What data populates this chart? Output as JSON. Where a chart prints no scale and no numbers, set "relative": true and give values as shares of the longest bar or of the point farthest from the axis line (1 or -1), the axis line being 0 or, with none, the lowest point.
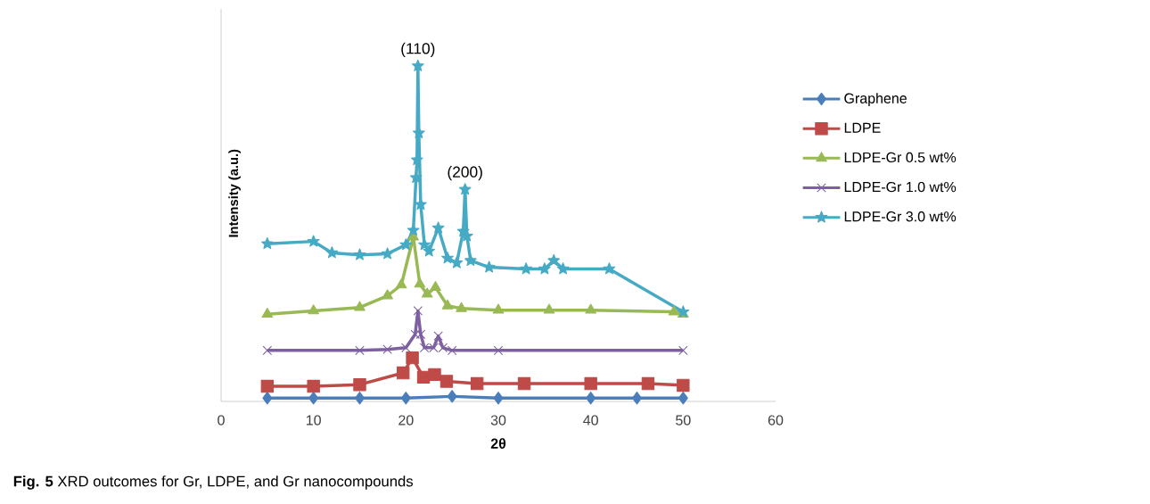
{
  "chart_data": {
    "type": "line",
    "relative": true,
    "xlabel": "2θ",
    "ylabel": "Intensity (a.u.)",
    "xlim": [
      0,
      60
    ],
    "xticks": [
      0,
      10,
      20,
      30,
      40,
      50,
      60
    ],
    "tick_labels": "x",
    "legend": "right",
    "grid": false,
    "line_style": "solid",
    "annotations": [
      {
        "text": "(110)",
        "x": 21.3,
        "y": 1.0
      },
      {
        "text": "(200)",
        "x": 26.4,
        "y": 0.632
      },
      "**Fig. 5** XRD outcomes for Gr, LDPE, and Gr nanocompounds"
    ],
    "series": [
      {
        "name": "Graphene",
        "color": "#4a7ebb",
        "marker": "diamond",
        "x": [
          5,
          10,
          15,
          20,
          25,
          30,
          40,
          45,
          50
        ],
        "values": [
          0.01,
          0.01,
          0.01,
          0.01,
          0.015,
          0.01,
          0.01,
          0.01,
          0.01
        ]
      },
      {
        "name": "LDPE",
        "color": "#be4b48",
        "marker": "square",
        "x": [
          5,
          10,
          15,
          19.7,
          20.7,
          21.9,
          23.1,
          24.4,
          27.7,
          32.8,
          40,
          46.2,
          50
        ],
        "values": [
          0.045,
          0.045,
          0.05,
          0.085,
          0.13,
          0.072,
          0.08,
          0.06,
          0.053,
          0.053,
          0.053,
          0.053,
          0.048
        ]
      },
      {
        "name": "LDPE-Gr 0.5 wt%",
        "color": "#98b954",
        "marker": "triangle",
        "x": [
          5,
          10,
          15,
          18,
          19.5,
          20.8,
          21.5,
          22.3,
          23.2,
          24.5,
          26,
          30,
          35.5,
          40,
          49,
          50
        ],
        "values": [
          0.26,
          0.27,
          0.28,
          0.315,
          0.347,
          0.49,
          0.35,
          0.32,
          0.34,
          0.285,
          0.277,
          0.272,
          0.272,
          0.272,
          0.267,
          0.26
        ]
      },
      {
        "name": "LDPE-Gr 1.0 wt%",
        "color": "#7d60a0",
        "marker": "cross",
        "x": [
          5,
          15,
          18,
          20,
          21,
          21.3,
          21.6,
          22,
          23,
          23.5,
          24,
          25,
          30,
          50
        ],
        "values": [
          0.152,
          0.152,
          0.155,
          0.16,
          0.2,
          0.27,
          0.2,
          0.16,
          0.16,
          0.195,
          0.16,
          0.152,
          0.152,
          0.152
        ]
      },
      {
        "name": "LDPE-Gr 3.0 wt%",
        "color": "#46aac5",
        "marker": "star",
        "x": [
          5,
          10,
          12,
          15,
          18,
          20,
          20.8,
          21.1,
          21.2,
          21.3,
          21.4,
          21.6,
          22,
          22.5,
          23.5,
          24.5,
          25.5,
          26.2,
          26.4,
          26.6,
          27,
          29,
          33,
          35,
          36,
          37,
          42,
          50
        ],
        "values": [
          0.47,
          0.477,
          0.443,
          0.437,
          0.44,
          0.467,
          0.51,
          0.667,
          0.72,
          1.0,
          0.8,
          0.587,
          0.467,
          0.448,
          0.517,
          0.427,
          0.413,
          0.507,
          0.632,
          0.493,
          0.42,
          0.4,
          0.395,
          0.395,
          0.42,
          0.395,
          0.395,
          0.267
        ]
      }
    ]
  }
}
